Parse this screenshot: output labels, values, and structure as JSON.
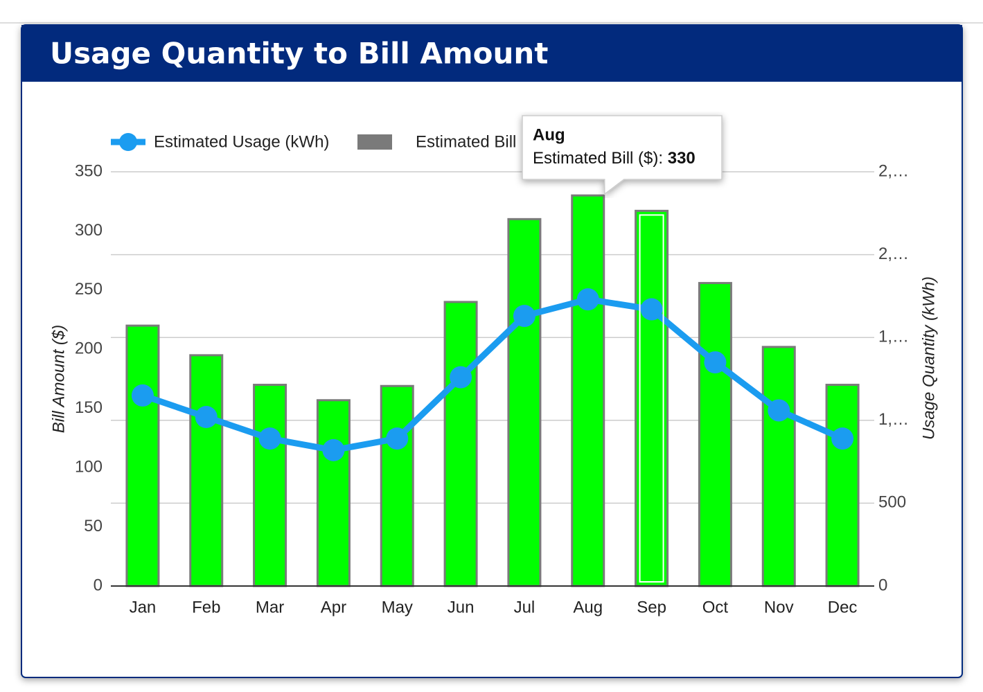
{
  "chart_data": {
    "type": "combo",
    "title": "Usage Quantity to Bill Amount",
    "categories": [
      "Jan",
      "Feb",
      "Mar",
      "Apr",
      "May",
      "Jun",
      "Jul",
      "Aug",
      "Sep",
      "Oct",
      "Nov",
      "Dec"
    ],
    "series": [
      {
        "name": "Estimated Usage (kWh)",
        "type": "line",
        "axis": "y2",
        "color": "#1b9cf0",
        "values": [
          1150,
          1020,
          890,
          820,
          890,
          1260,
          1630,
          1730,
          1670,
          1350,
          1060,
          890
        ]
      },
      {
        "name": "Estimated Bill ($)",
        "type": "bar",
        "axis": "y",
        "color": "#00ff00",
        "values": [
          220,
          195,
          170,
          157,
          169,
          240,
          310,
          330,
          317,
          256,
          202,
          170
        ]
      }
    ],
    "ylabel": "Bill Amount ($)",
    "y2label": "Usage Quantity (kWh)",
    "ylim": [
      0,
      350
    ],
    "yticks": [
      0,
      50,
      100,
      150,
      200,
      250,
      300,
      350
    ],
    "y2lim": [
      0,
      2500
    ],
    "y2ticks": [
      0,
      500,
      {
        "value": 1000,
        "label": "1,…"
      },
      {
        "value": 1500,
        "label": "1,…"
      },
      {
        "value": 2000,
        "label": "2,…"
      },
      {
        "value": 2500,
        "label": "2,…"
      }
    ],
    "grid": true,
    "legend": "top-left",
    "tooltip": {
      "category": 7,
      "series": 1
    }
  }
}
